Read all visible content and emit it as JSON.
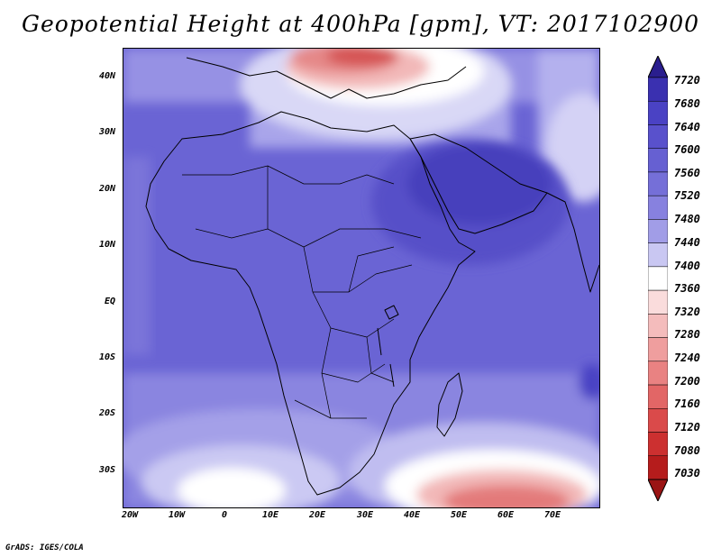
{
  "title": "Geopotential Height at 400hPa [gpm], VT: 2017102900",
  "footer": "GrADS: IGES/COLA",
  "map": {
    "lat_ticks": [
      "40N",
      "30N",
      "20N",
      "10N",
      "EQ",
      "10S",
      "20S",
      "30S"
    ],
    "lon_ticks": [
      "20W",
      "10W",
      "0",
      "10E",
      "20E",
      "30E",
      "40E",
      "50E",
      "60E",
      "70E"
    ],
    "lat_range": [
      -36.5,
      45
    ],
    "lon_range": [
      -22,
      78
    ]
  },
  "colorbar": {
    "levels": [
      "7720",
      "7680",
      "7640",
      "7600",
      "7560",
      "7520",
      "7480",
      "7440",
      "7400",
      "7360",
      "7320",
      "7280",
      "7240",
      "7200",
      "7160",
      "7120",
      "7080",
      "7030"
    ],
    "colors": [
      "#2a1e8e",
      "#3a30b0",
      "#4a42c4",
      "#5951cc",
      "#6660d2",
      "#756fd8",
      "#8781df",
      "#a19de7",
      "#c9c7f2",
      "#ffffff",
      "#fadcdc",
      "#f4bcbc",
      "#ef9e9e",
      "#e98282",
      "#e26666",
      "#da4a4a",
      "#cc3030",
      "#b51c1c",
      "#9a1414"
    ]
  }
}
